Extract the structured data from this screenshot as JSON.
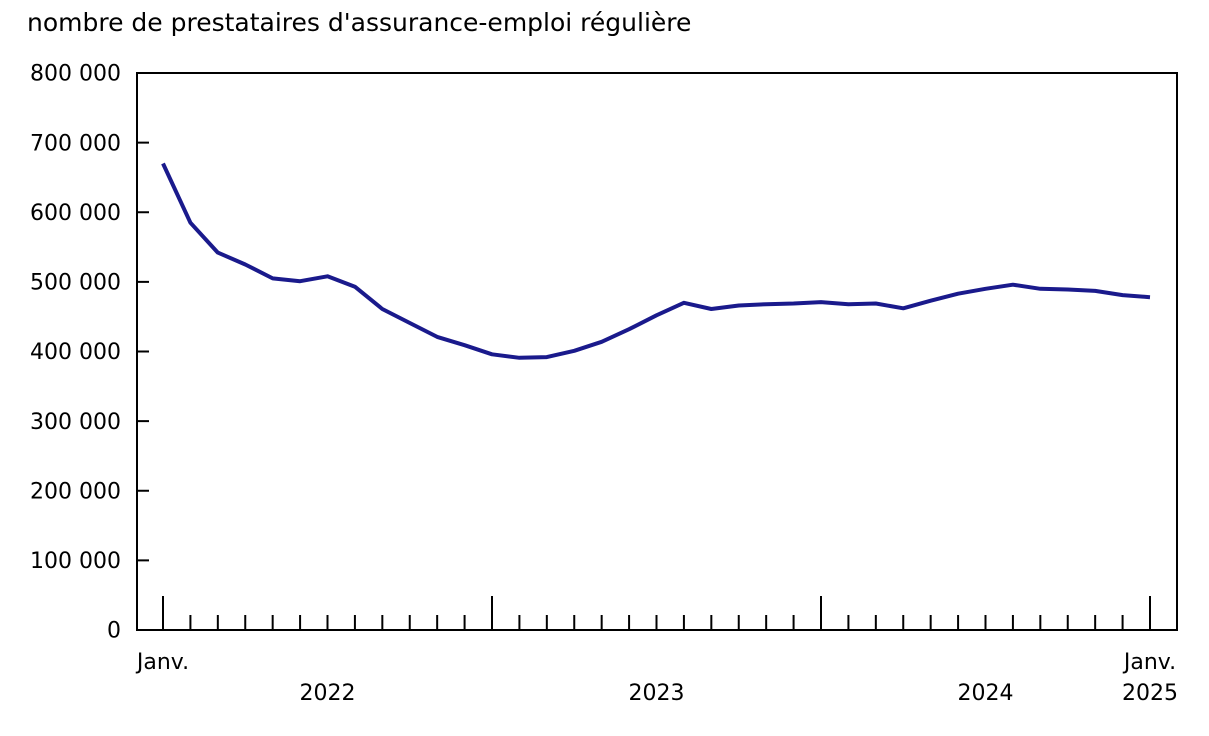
{
  "title": "nombre de prestataires d'assurance-emploi régulière",
  "chart_data": {
    "type": "line",
    "title": "nombre de prestataires d'assurance-emploi régulière",
    "line_color": "#1a1a8c",
    "axis_color": "#000000",
    "grid": false,
    "legend": false,
    "ylim": [
      0,
      800000
    ],
    "y_ticks": {
      "values": [
        0,
        100000,
        200000,
        300000,
        400000,
        500000,
        600000,
        700000,
        800000
      ],
      "labels": [
        "0",
        "100 000",
        "200 000",
        "300 000",
        "400 000",
        "500 000",
        "600 000",
        "700 000",
        "800 000"
      ]
    },
    "x_axis": {
      "first_month_label": "Janv.",
      "last_month_label": "Janv.",
      "years": [
        "2022",
        "2023",
        "2024",
        "2025"
      ]
    },
    "x": [
      "2022-01",
      "2022-02",
      "2022-03",
      "2022-04",
      "2022-05",
      "2022-06",
      "2022-07",
      "2022-08",
      "2022-09",
      "2022-10",
      "2022-11",
      "2022-12",
      "2023-01",
      "2023-02",
      "2023-03",
      "2023-04",
      "2023-05",
      "2023-06",
      "2023-07",
      "2023-08",
      "2023-09",
      "2023-10",
      "2023-11",
      "2023-12",
      "2024-01",
      "2024-02",
      "2024-03",
      "2024-04",
      "2024-05",
      "2024-06",
      "2024-07",
      "2024-08",
      "2024-09",
      "2024-10",
      "2024-11",
      "2024-12",
      "2025-01"
    ],
    "values": [
      670000,
      585000,
      542000,
      525000,
      505000,
      501000,
      508000,
      493000,
      461000,
      441000,
      421000,
      409000,
      396000,
      391000,
      392000,
      401000,
      414000,
      432000,
      452000,
      470000,
      461000,
      466000,
      468000,
      469000,
      471000,
      468000,
      469000,
      462000,
      473000,
      483000,
      490000,
      496000,
      490000,
      489000,
      487000,
      481000,
      478000
    ]
  }
}
